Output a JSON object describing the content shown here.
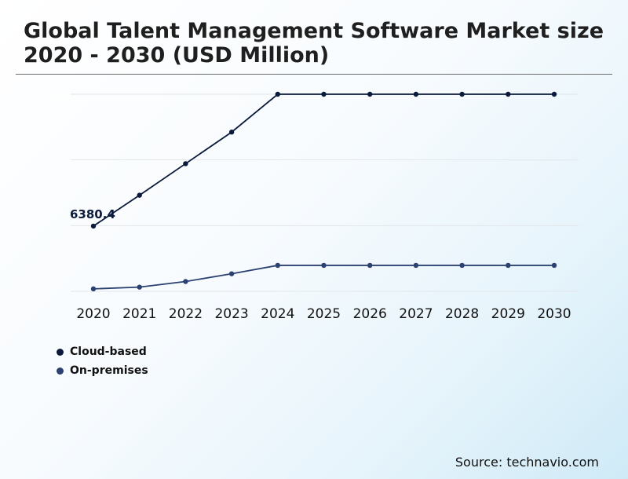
{
  "chart_data": {
    "type": "line",
    "title": "Global Talent Management Software Market size 2020 - 2030 (USD Million)",
    "categories": [
      "2020",
      "2021",
      "2022",
      "2023",
      "2024",
      "2025",
      "2026",
      "2027",
      "2028",
      "2029",
      "2030"
    ],
    "series": [
      {
        "name": "Cloud-based",
        "color": "#0b1a3b",
        "values": [
          6380.4,
          6820,
          7270,
          7720,
          8260,
          8260,
          8260,
          8260,
          8260,
          8260,
          8260
        ]
      },
      {
        "name": "On-premises",
        "color": "#2b4170",
        "values": [
          5485,
          5510,
          5590,
          5700,
          5820,
          5820,
          5820,
          5820,
          5820,
          5820,
          5820
        ]
      }
    ],
    "annotation": {
      "series": 0,
      "index": 0,
      "text": "6380.4"
    },
    "ylim": [
      5450,
      8260
    ],
    "gridlines": 4,
    "legend": "bottom-left",
    "xlabel": "",
    "ylabel": ""
  },
  "source": "Source: technavio.com"
}
